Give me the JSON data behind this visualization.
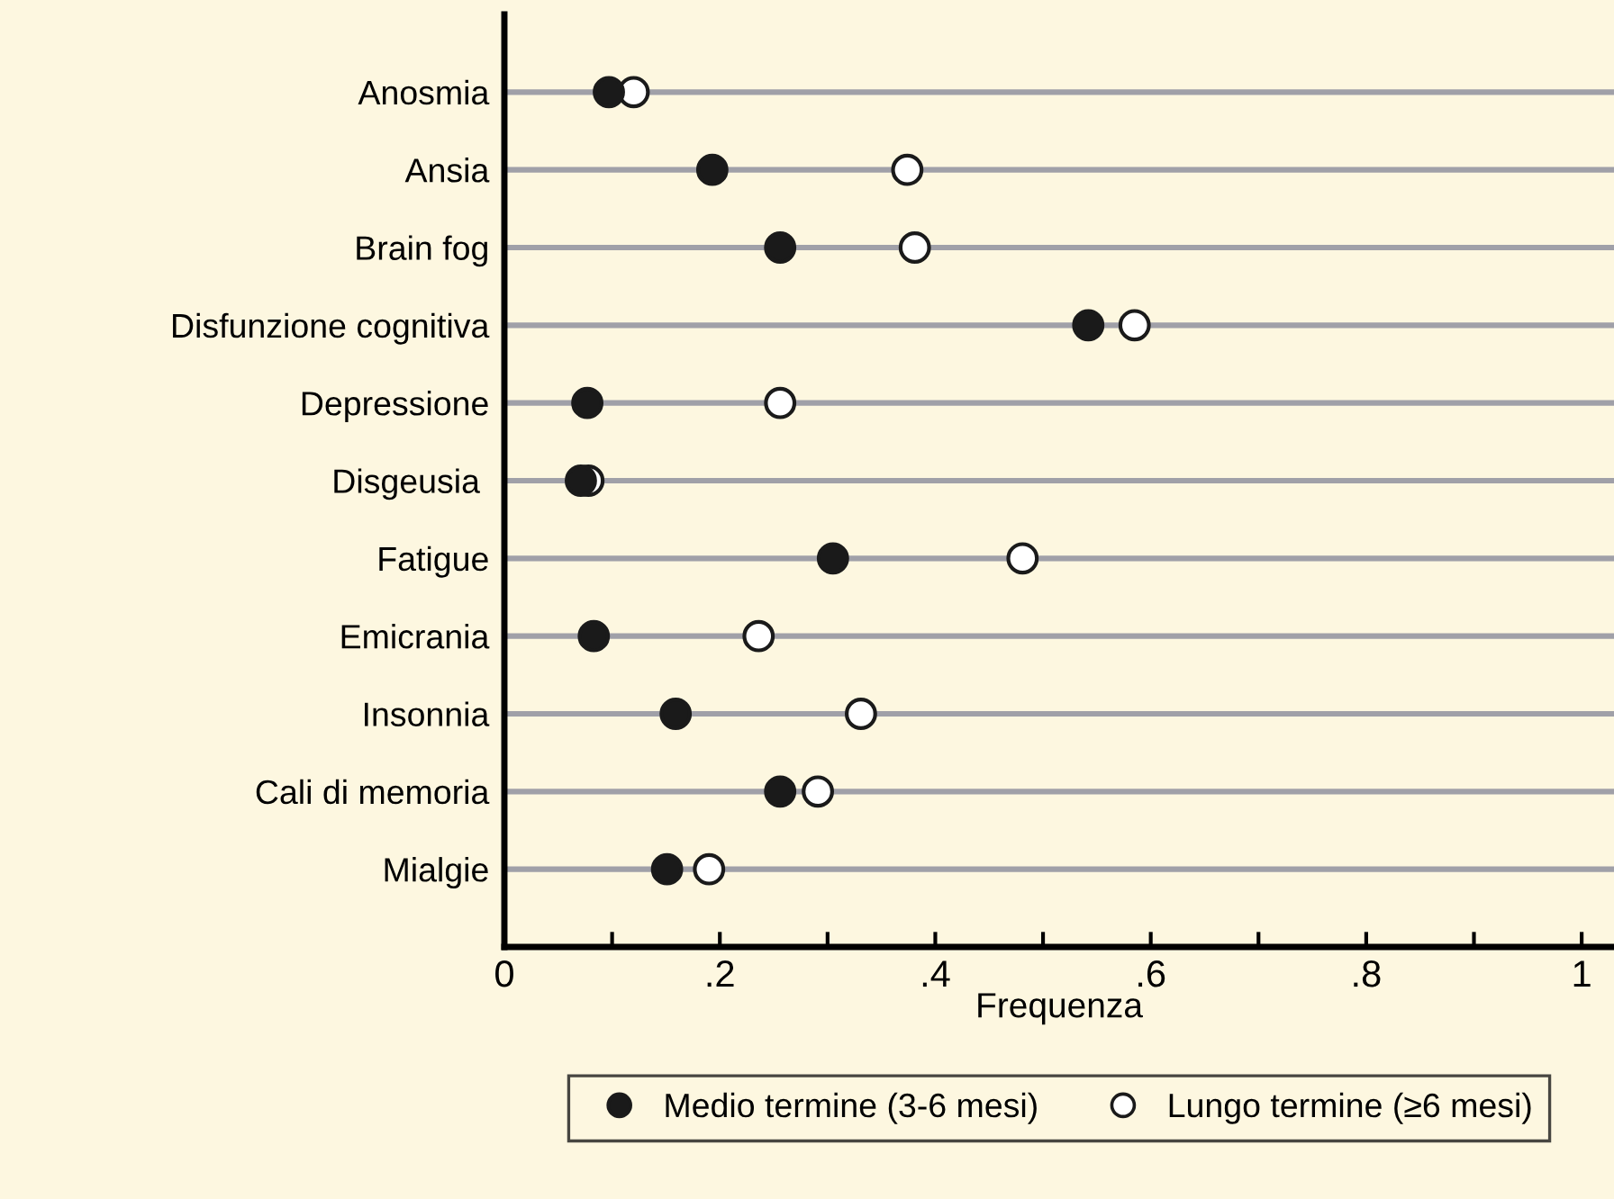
{
  "chart_data": {
    "type": "scatter",
    "xlabel": "Frequenza",
    "categories": [
      "Anosmia",
      "Ansia",
      "Brain fog",
      "Disfunzione cognitiva",
      "Depressione",
      "Disgeusia ",
      "Fatigue",
      "Emicrania",
      "Insonnia",
      "Cali di memoria",
      "Mialgie"
    ],
    "orientation": "horizontal",
    "series": [
      {
        "name": "Medio termine (3-6 mesi)",
        "color": "#1a1a1a",
        "marker": "circle",
        "values": [
          0.097,
          0.193,
          0.256,
          0.542,
          0.077,
          0.071,
          0.305,
          0.083,
          0.159,
          0.256,
          0.151
        ]
      },
      {
        "name": "Lungo termine (≥6 mesi)",
        "color": "#ffffff",
        "marker": "circle",
        "values": [
          0.12,
          0.374,
          0.381,
          0.585,
          0.256,
          0.078,
          0.481,
          0.236,
          0.331,
          0.291,
          0.19
        ]
      }
    ],
    "xlim": [
      0,
      1.03
    ],
    "xticks": [
      0,
      {
        "value": 0.1,
        "label": null
      },
      {
        "value": 0.2,
        "label": ".2"
      },
      {
        "value": 0.3,
        "label": null
      },
      {
        "value": 0.4,
        "label": ".4"
      },
      {
        "value": 0.5,
        "label": null
      },
      {
        "value": 0.6,
        "label": ".6"
      },
      {
        "value": 0.7,
        "label": null
      },
      {
        "value": 0.8,
        "label": ".8"
      },
      {
        "value": 0.9,
        "label": null
      },
      1
    ],
    "grid": "y",
    "legend": "bottom"
  }
}
